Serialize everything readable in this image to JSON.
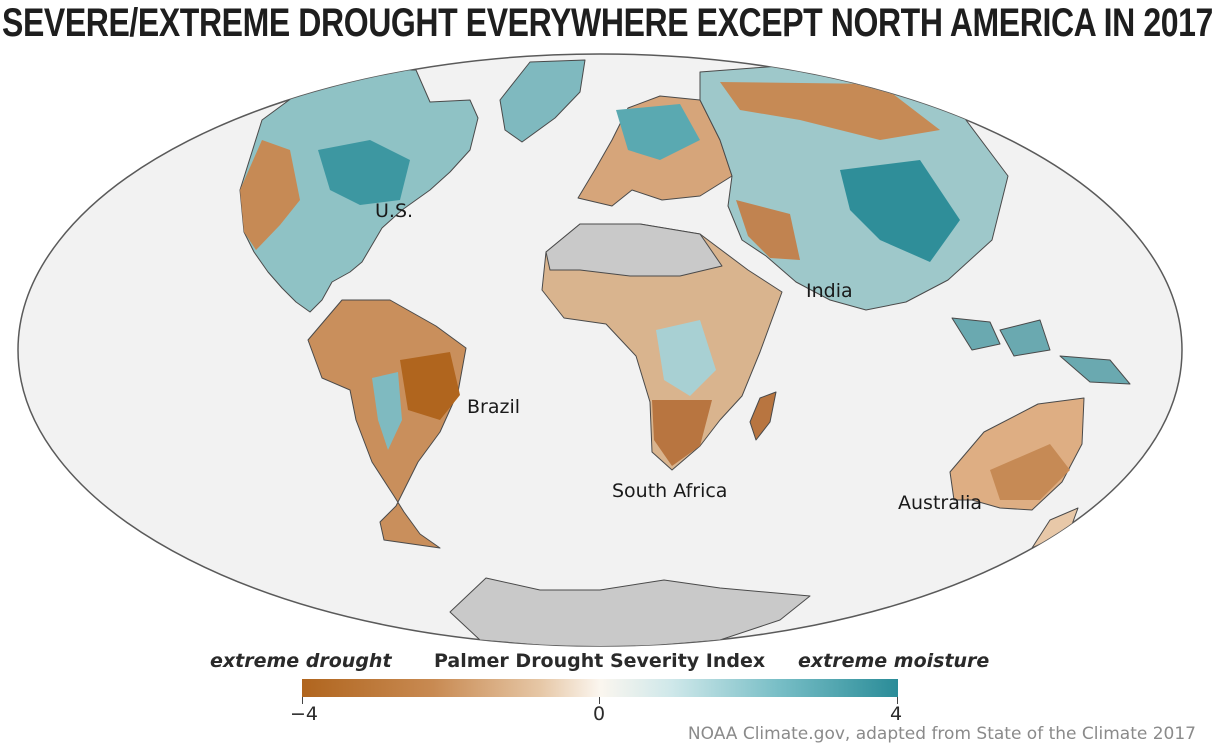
{
  "title": "SEVERE/EXTREME DROUGHT EVERYWHERE EXCEPT NORTH AMERICA IN 2017",
  "map": {
    "projection": "mollweide",
    "region_labels": {
      "us": "U.S.",
      "india": "India",
      "brazil": "Brazil",
      "south_africa": "South Africa",
      "australia": "Australia"
    },
    "colors": {
      "ocean": "#f2f2f2",
      "no_data": "#c9c9c9",
      "drought": "#b0651e",
      "neutral": "#fbf6ef",
      "moisture": "#2a8c98"
    }
  },
  "legend": {
    "left_label": "extreme drought",
    "center_label": "Palmer Drought Severity Index",
    "right_label": "extreme moisture",
    "ticks": [
      "−4",
      "0",
      "4"
    ],
    "range": [
      -4,
      4
    ]
  },
  "credit": "NOAA Climate.gov, adapted from State of the Climate 2017"
}
